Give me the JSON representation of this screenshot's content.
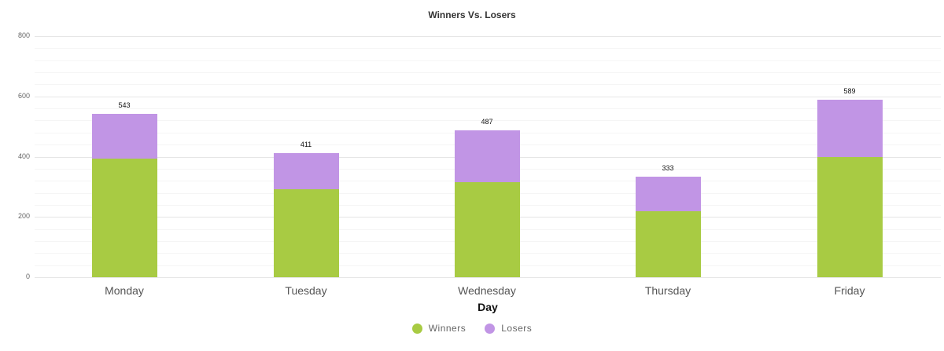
{
  "chart_data": {
    "type": "bar",
    "stacked": true,
    "title": "Winners Vs. Losers",
    "xlabel": "Day",
    "ylabel": "",
    "ylim": [
      0,
      800
    ],
    "yticks": [
      0,
      200,
      400,
      600,
      800
    ],
    "grid": true,
    "legend_position": "bottom",
    "categories": [
      "Monday",
      "Tuesday",
      "Wednesday",
      "Thursday",
      "Friday"
    ],
    "series": [
      {
        "name": "Winners",
        "color": "#a8cb43",
        "values": [
          393,
          292,
          315,
          219,
          398
        ]
      },
      {
        "name": "Losers",
        "color": "#c195e5",
        "values": [
          150,
          119,
          172,
          114,
          191
        ]
      }
    ],
    "totals": [
      543,
      411,
      487,
      333,
      589
    ]
  },
  "labels": {
    "title": "Winners Vs. Losers",
    "xlabel": "Day",
    "yticks": [
      "0",
      "200",
      "400",
      "600",
      "800"
    ],
    "categories": [
      "Monday",
      "Tuesday",
      "Wednesday",
      "Thursday",
      "Friday"
    ],
    "totals": [
      "543",
      "411",
      "487",
      "333",
      "589"
    ],
    "legend": [
      "Winners",
      "Losers"
    ]
  }
}
